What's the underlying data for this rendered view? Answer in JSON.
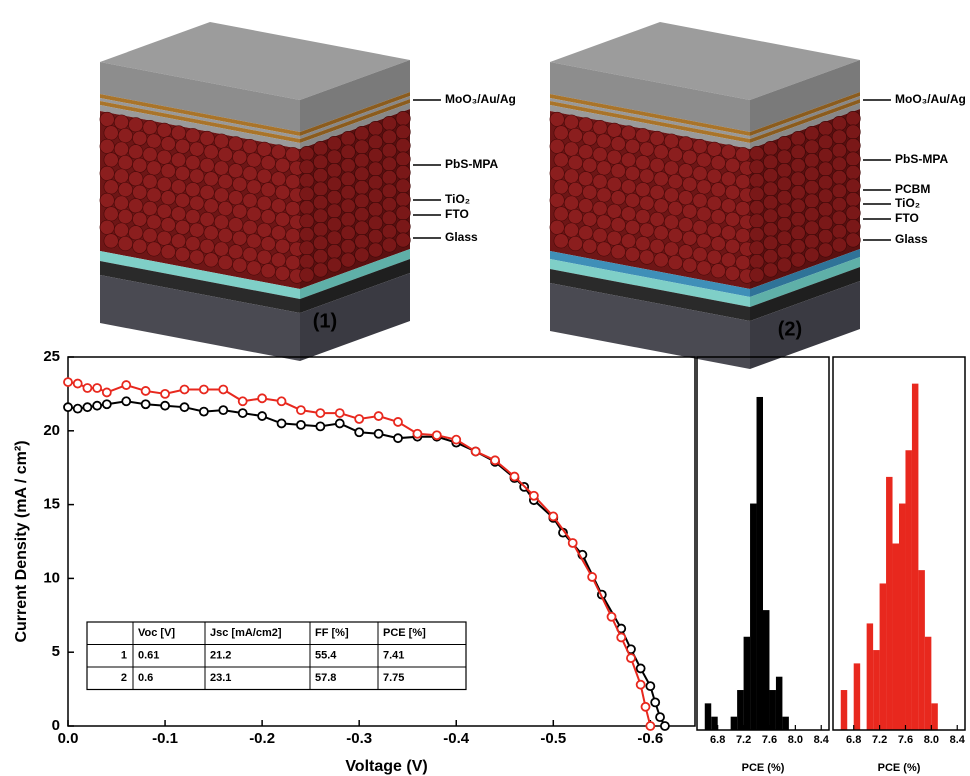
{
  "schematics": [
    {
      "label": "(1)",
      "layers": [
        "MoO₃/Au/Ag",
        "PbS-MPA",
        "TiO₂",
        "FTO",
        "Glass"
      ]
    },
    {
      "label": "(2)",
      "layers": [
        "MoO₃/Au/Ag",
        "PbS-MPA",
        "PCBM",
        "TiO₂",
        "FTO",
        "Glass"
      ]
    }
  ],
  "chart_data": [
    {
      "type": "line",
      "xlabel": "Voltage (V)",
      "ylabel": "Current Density (mA / cm²)",
      "xlim": [
        0,
        -0.646
      ],
      "ylim": [
        0,
        25
      ],
      "xticks": [
        {
          "value": 0,
          "label": "0.0"
        },
        -0.1,
        -0.2,
        -0.3,
        -0.4,
        -0.5,
        -0.6
      ],
      "yticks": [
        0,
        5,
        10,
        15,
        20,
        25
      ],
      "series": [
        {
          "name": "1",
          "color": "#000000",
          "x": [
            0,
            -0.01,
            -0.02,
            -0.03,
            -0.04,
            -0.06,
            -0.08,
            -0.1,
            -0.12,
            -0.14,
            -0.16,
            -0.18,
            -0.2,
            -0.22,
            -0.24,
            -0.26,
            -0.28,
            -0.3,
            -0.32,
            -0.34,
            -0.36,
            -0.38,
            -0.4,
            -0.42,
            -0.44,
            -0.46,
            -0.47,
            -0.48,
            -0.5,
            -0.51,
            -0.53,
            -0.55,
            -0.57,
            -0.58,
            -0.59,
            -0.6,
            -0.605,
            -0.61,
            -0.615
          ],
          "values": [
            21.6,
            21.5,
            21.6,
            21.7,
            21.8,
            22.0,
            21.8,
            21.7,
            21.6,
            21.3,
            21.4,
            21.2,
            21.0,
            20.5,
            20.4,
            20.3,
            20.5,
            19.9,
            19.8,
            19.5,
            19.6,
            19.6,
            19.2,
            18.6,
            17.9,
            16.8,
            16.2,
            15.3,
            14.1,
            13.1,
            11.6,
            8.9,
            6.6,
            5.2,
            3.9,
            2.7,
            1.6,
            0.6,
            0
          ]
        },
        {
          "name": "2",
          "color": "#e8281e",
          "x": [
            0,
            -0.01,
            -0.02,
            -0.03,
            -0.04,
            -0.06,
            -0.08,
            -0.1,
            -0.12,
            -0.14,
            -0.16,
            -0.18,
            -0.2,
            -0.22,
            -0.24,
            -0.26,
            -0.28,
            -0.3,
            -0.32,
            -0.34,
            -0.36,
            -0.38,
            -0.4,
            -0.42,
            -0.44,
            -0.46,
            -0.48,
            -0.5,
            -0.52,
            -0.54,
            -0.56,
            -0.57,
            -0.58,
            -0.59,
            -0.595,
            -0.6
          ],
          "values": [
            23.3,
            23.2,
            22.9,
            22.9,
            22.6,
            23.1,
            22.7,
            22.5,
            22.8,
            22.8,
            22.8,
            22.0,
            22.2,
            22.0,
            21.4,
            21.2,
            21.2,
            20.8,
            21.0,
            20.6,
            19.8,
            19.7,
            19.4,
            18.6,
            18.0,
            16.9,
            15.6,
            14.2,
            12.4,
            10.1,
            7.4,
            6.0,
            4.6,
            2.8,
            1.3,
            0
          ]
        }
      ],
      "inset_table": {
        "columns": [
          "Voc [V]",
          "Jsc [mA/cm2]",
          "FF [%]",
          "PCE [%]"
        ],
        "rows": [
          {
            "label": "1",
            "cells": [
              "0.61",
              "21.2",
              "55.4",
              "7.41"
            ]
          },
          {
            "label": "2",
            "cells": [
              "0.6",
              "23.1",
              "57.8",
              "7.75"
            ]
          }
        ]
      }
    },
    {
      "type": "histogram",
      "xlabel": "PCE (%)",
      "color": "#000000",
      "bins": [
        6.6,
        6.7,
        6.8,
        6.9,
        7.0,
        7.1,
        7.2,
        7.3,
        7.4,
        7.5,
        7.6,
        7.7,
        7.8,
        7.9
      ],
      "counts": [
        2,
        1,
        0,
        0,
        1,
        3,
        7,
        17,
        25,
        9,
        3,
        4,
        1
      ],
      "xlim": [
        6.48,
        8.52
      ],
      "ylim": [
        0,
        28
      ],
      "xticks": [
        6.8,
        7.2,
        7.6,
        {
          "value": 8,
          "label": "8.0"
        },
        8.4
      ]
    },
    {
      "type": "histogram",
      "xlabel": "PCE (%)",
      "color": "#e8281e",
      "bins": [
        6.6,
        6.7,
        6.8,
        6.9,
        7.0,
        7.1,
        7.2,
        7.3,
        7.4,
        7.5,
        7.6,
        7.7,
        7.8,
        7.9,
        8.0,
        8.1
      ],
      "counts": [
        3,
        0,
        5,
        0,
        8,
        6,
        11,
        19,
        14,
        17,
        21,
        26,
        12,
        7,
        2
      ],
      "xlim": [
        6.48,
        8.52
      ],
      "ylim": [
        0,
        28
      ],
      "xticks": [
        6.8,
        7.2,
        7.6,
        {
          "value": 8,
          "label": "8.0"
        },
        8.4
      ]
    }
  ]
}
